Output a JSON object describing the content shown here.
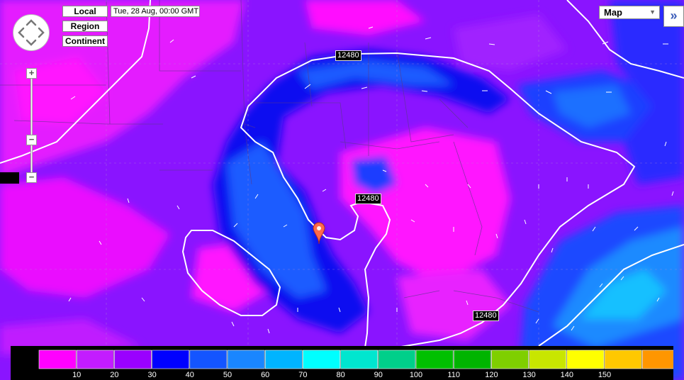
{
  "view_buttons": [
    "Local",
    "Region",
    "Continent"
  ],
  "timestamp": "Tue, 28 Aug, 00:00 GMT",
  "map_type": {
    "selected": "Map"
  },
  "expand_icon": "double-chevron-right-icon",
  "zoom": {
    "plus": "+",
    "minus": "−"
  },
  "isobar_labels": [
    "12480",
    "12480",
    "12480"
  ],
  "legend": {
    "colors": [
      "#ff00ff",
      "#c31cff",
      "#9a00ff",
      "#0000ff",
      "#1455ff",
      "#1a86ff",
      "#00b4ff",
      "#00ffff",
      "#00e6cf",
      "#00cf8a",
      "#00c000",
      "#00b400",
      "#7fcf00",
      "#c8e600",
      "#ffff00",
      "#ffc800",
      "#ff9600"
    ],
    "labels": [
      "10",
      "20",
      "30",
      "40",
      "50",
      "60",
      "70",
      "80",
      "90",
      "100",
      "110",
      "120",
      "130",
      "140",
      "150"
    ]
  }
}
